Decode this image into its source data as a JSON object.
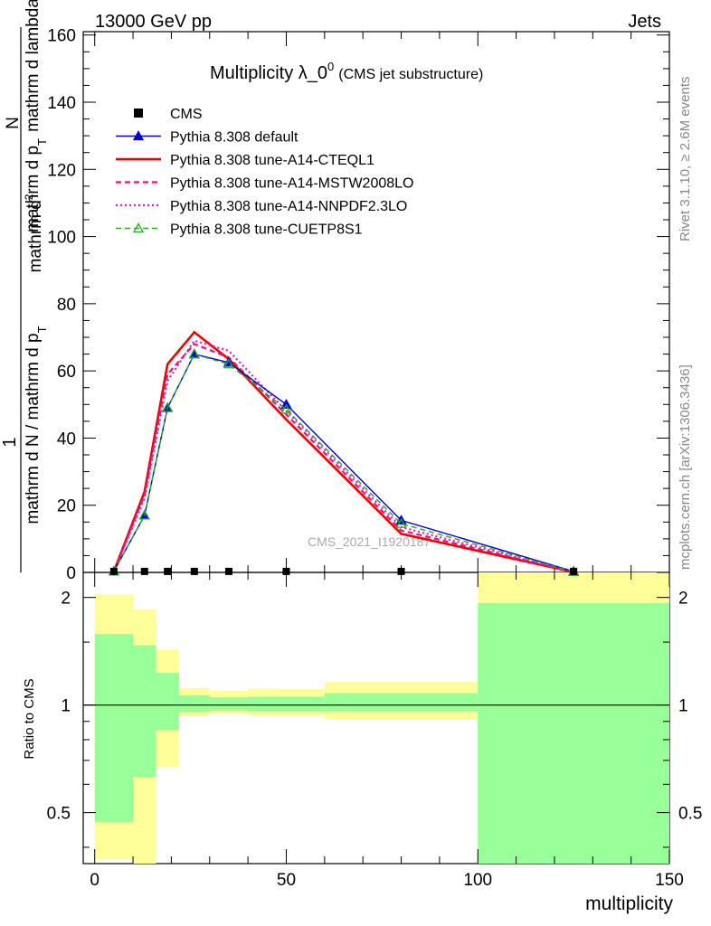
{
  "header": {
    "left": "13000 GeV pp",
    "right": "Jets"
  },
  "side_labels": {
    "rivet": "Rivet 3.1.10, ≥ 2.6M events",
    "mcplots": "mcplots.cern.ch [arXiv:1306.3436]"
  },
  "watermark": "CMS_2021_I1920187",
  "chart_data": [
    {
      "type": "line",
      "title": "Multiplicity λ_0",
      "title_superscript": "0",
      "subtitle": "(CMS jet substructure)",
      "ylabel_numerator": "1",
      "ylabel_numerator_line1": "mathrm d",
      "ylabel_numerator_sup": "2",
      "ylabel_numerator_line2": "N",
      "ylabel_denominator": "mathrm d N / mathrm d p",
      "ylabel_denominator_sub": "T",
      "ylabel_right_part1": "mathrm d p",
      "ylabel_right_sub": "T",
      "ylabel_right_part2": "mathrm d lambda",
      "xlim": [
        -3,
        150
      ],
      "ylim": [
        0,
        161
      ],
      "yticks": [
        0,
        20,
        40,
        60,
        80,
        100,
        120,
        140,
        160
      ],
      "x": [
        5,
        13,
        19,
        26,
        35,
        50,
        80,
        125
      ],
      "series": [
        {
          "name": "CMS",
          "color": "#000000",
          "marker": "square",
          "values": [
            0.3,
            0.3,
            0.3,
            0.3,
            0.3,
            0.3,
            0.3,
            0.3
          ]
        },
        {
          "name": "Pythia 8.308 default",
          "color": "#0000cc",
          "marker": "triangle",
          "values": [
            0.3,
            17,
            49,
            65,
            62.5,
            50,
            15.5,
            0.3
          ]
        },
        {
          "name": "Pythia 8.308 tune-A14-CTEQL1",
          "color": "#ee0000",
          "marker": "none",
          "values": [
            0.3,
            24,
            62,
            71.5,
            63.5,
            45.5,
            11.5,
            0.1
          ]
        },
        {
          "name": "Pythia 8.308 tune-A14-MSTW2008LO",
          "color": "#ee1177",
          "marker": "none",
          "values": [
            0.3,
            23,
            59,
            68,
            64,
            47,
            12.5,
            0.1
          ]
        },
        {
          "name": "Pythia 8.308 tune-A14-NNPDF2.3LO",
          "color": "#cc22cc",
          "marker": "none",
          "values": [
            0.3,
            22,
            57,
            69,
            66,
            48,
            13.5,
            0.1
          ]
        },
        {
          "name": "Pythia 8.308 tune-CUETP8S1",
          "color": "#22aa22",
          "marker": "triangle-open",
          "values": [
            0.3,
            17,
            49,
            65,
            62,
            48.5,
            14.5,
            0.2
          ]
        }
      ]
    },
    {
      "type": "area",
      "ylabel": "Ratio to CMS",
      "xlabel": "multiplicity",
      "xlim": [
        -3,
        150
      ],
      "ylim": [
        0.36,
        2.35
      ],
      "log_y": true,
      "yticks": [
        0.5,
        1,
        2
      ],
      "xticks": [
        0,
        50,
        100,
        150
      ],
      "bins": [
        {
          "x0": 0,
          "x1": 10,
          "inner": [
            0.47,
            1.58
          ],
          "outer": [
            0.37,
            2.04
          ]
        },
        {
          "x0": 10,
          "x1": 16,
          "inner": [
            0.63,
            1.47
          ],
          "outer": [
            0.36,
            1.85
          ]
        },
        {
          "x0": 16,
          "x1": 22,
          "inner": [
            0.85,
            1.23
          ],
          "outer": [
            0.67,
            1.43
          ]
        },
        {
          "x0": 22,
          "x1": 30,
          "inner": [
            0.955,
            1.065
          ],
          "outer": [
            0.93,
            1.115
          ]
        },
        {
          "x0": 30,
          "x1": 40,
          "inner": [
            0.965,
            1.05
          ],
          "outer": [
            0.945,
            1.095
          ]
        },
        {
          "x0": 40,
          "x1": 60,
          "inner": [
            0.96,
            1.055
          ],
          "outer": [
            0.935,
            1.11
          ]
        },
        {
          "x0": 60,
          "x1": 100,
          "inner": [
            0.96,
            1.08
          ],
          "outer": [
            0.91,
            1.16
          ]
        },
        {
          "x0": 100,
          "x1": 150,
          "inner": [
            0.36,
            1.93
          ],
          "outer": [
            0.36,
            2.35
          ]
        }
      ],
      "reference_line": 1
    }
  ]
}
